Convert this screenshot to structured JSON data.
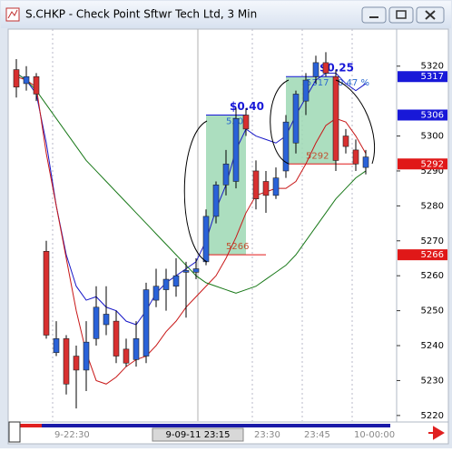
{
  "chart_data": {
    "type": "candlestick",
    "title": "S.CHKP - Check Point Sftwr Tech Ltd, 3 Min",
    "categories": [
      null,
      null,
      null,
      null,
      "9-22:30",
      null,
      null,
      null,
      null,
      null,
      null,
      null,
      null,
      null,
      null,
      null,
      null,
      null,
      "9-09-11 23:15",
      null,
      null,
      null,
      null,
      null,
      "23:30",
      null,
      null,
      null,
      null,
      "23:45",
      null,
      null,
      null,
      null,
      "10-00:00",
      null
    ],
    "highlight_category": 18,
    "ylim": [
      5218.4,
      5330.6
    ],
    "yticks": [
      5220,
      5230,
      5240,
      5250,
      5260,
      5270,
      5280,
      5290,
      5300,
      5320
    ],
    "up_color": "#2a62d8",
    "down_color": "#d83030",
    "open": [
      5319,
      5315,
      5317,
      5267,
      5238,
      5242,
      5237,
      5233,
      5242,
      5246,
      5247,
      5239,
      5236,
      5237,
      5253,
      5256,
      5257,
      5261,
      5261,
      5264,
      5277,
      5286,
      5287,
      5306,
      5290,
      5287,
      5283,
      5290,
      5298,
      5310,
      5317,
      5321,
      5317,
      5300,
      5296,
      5291
    ],
    "high": [
      5322,
      5320,
      5318,
      5270,
      5247,
      5243,
      5240,
      5247,
      5257,
      5257,
      5250,
      5242,
      5247,
      5258,
      5262,
      5262,
      5265,
      5264,
      5265,
      5279,
      5287,
      5296,
      5308,
      5308,
      5293,
      5290,
      5291,
      5306,
      5313,
      5318,
      5323,
      5324,
      5319,
      5302,
      5299,
      5296
    ],
    "low": [
      5311,
      5313,
      5310,
      5242,
      5237,
      5226,
      5222,
      5227,
      5240,
      5243,
      5235,
      5234,
      5234,
      5235,
      5251,
      5250,
      5254,
      5248,
      5259,
      5263,
      5275,
      5283,
      5285,
      5300,
      5279,
      5278,
      5282,
      5288,
      5295,
      5306,
      5315,
      5317,
      5290,
      5295,
      5290,
      5289
    ],
    "close": [
      5314,
      5317,
      5312,
      5243,
      5242,
      5229,
      5233,
      5241,
      5251,
      5249,
      5237,
      5235,
      5242,
      5256,
      5257,
      5259,
      5260,
      5261.5,
      5262,
      5277,
      5286,
      5292,
      5305,
      5302,
      5282,
      5283,
      5288,
      5304,
      5312,
      5316,
      5321,
      5318,
      5293,
      5297,
      5292,
      5294
    ],
    "series": [
      {
        "color": "#1818c8",
        "values": [
          5318,
          5316,
          5312,
          5298,
          5280,
          5266,
          5257,
          5253,
          5254,
          5251,
          5250,
          5247,
          5246,
          5250,
          5255,
          5258,
          5260,
          5262,
          5264,
          5270,
          5279,
          5286,
          5296,
          5302,
          5300,
          5299,
          5298,
          5300,
          5306,
          5311,
          5316,
          5318,
          5318,
          5315,
          5313,
          5315
        ]
      },
      {
        "color": "#c81818",
        "values": [
          5317,
          5316,
          5314,
          5295,
          5280,
          5265,
          5250,
          5238,
          5230,
          5229,
          5231,
          5234,
          5236,
          5237,
          5240,
          5244,
          5247,
          5251,
          5254,
          5257,
          5260,
          5265,
          5271,
          5278,
          5283,
          5284,
          5285,
          5285,
          5287,
          5292,
          5298,
          5303,
          5305,
          5304,
          5300,
          5295
        ]
      },
      {
        "color": "#187818",
        "values": [
          5318,
          5316,
          5313,
          5309,
          5305,
          5301,
          5297,
          5293,
          5290,
          5287,
          5284,
          5281,
          5278,
          5275,
          5272,
          5269,
          5266,
          5263,
          5260,
          5258,
          5257,
          5256,
          5255,
          5256,
          5257,
          5259,
          5261,
          5263,
          5266,
          5270,
          5274,
          5278,
          5282,
          5285,
          5288,
          5290
        ]
      }
    ],
    "measures": [
      {
        "start": 19,
        "end": 23,
        "from": 5266,
        "to": 5306,
        "change": "$0.40"
      },
      {
        "start": 27,
        "end": 32,
        "from": 5292,
        "to": 5317,
        "change": "$0.25",
        "percent": "0.47 %"
      }
    ],
    "price_markers": [
      {
        "value": 5317,
        "color": "#1818d8"
      },
      {
        "value": 5306,
        "color": "#1818d8"
      },
      {
        "value": 5292,
        "color": "#e01818"
      },
      {
        "value": 5266,
        "color": "#e01818"
      }
    ]
  }
}
